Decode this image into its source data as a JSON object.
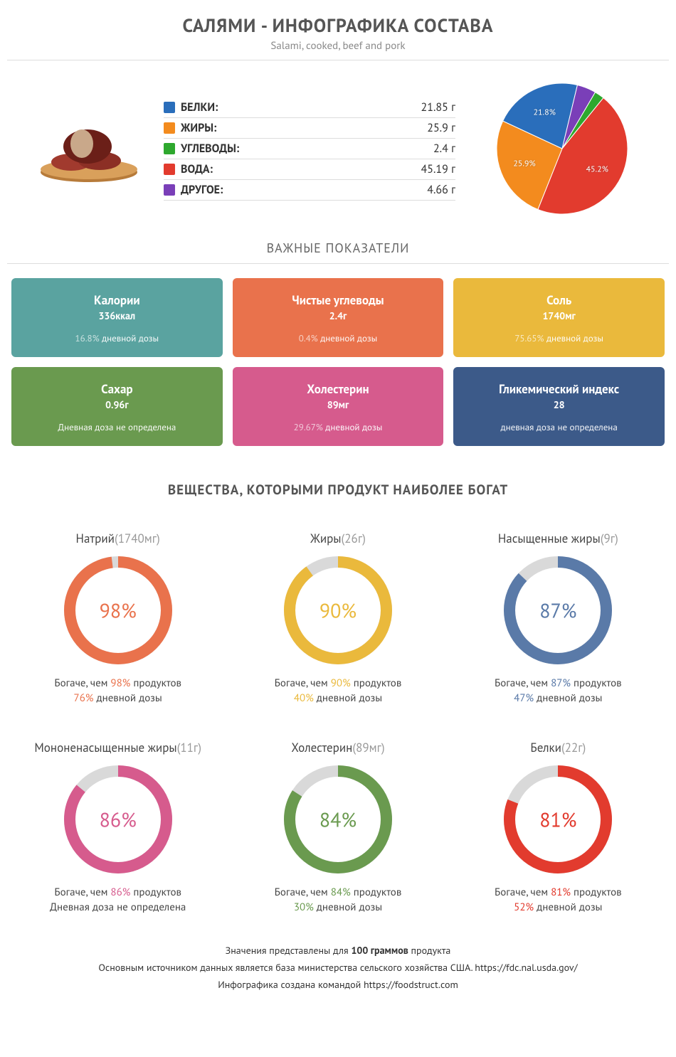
{
  "header": {
    "title": "САЛЯМИ - ИНФОГРАФИКА СОСТАВА",
    "subtitle": "Salami, cooked, beef and pork"
  },
  "composition": {
    "unit_suffix": " г",
    "items": [
      {
        "label": "БЕЛКИ:",
        "value": "21.85 г",
        "color": "#2a6ebb",
        "pct": 21.8
      },
      {
        "label": "ЖИРЫ:",
        "value": "25.9 г",
        "color": "#f38b1e",
        "pct": 25.9
      },
      {
        "label": "УГЛЕВОДЫ:",
        "value": "2.4 г",
        "color": "#2ea82e",
        "pct": 2.4
      },
      {
        "label": "ВОДА:",
        "value": "45.19 г",
        "color": "#e23b2e",
        "pct": 45.2
      },
      {
        "label": "ДРУГОЕ:",
        "value": "4.66 г",
        "color": "#7a3fb8",
        "pct": 4.7
      }
    ],
    "pie_labels": [
      {
        "text": "21.8%",
        "pct_cum": 10.9
      },
      {
        "text": "25.9%",
        "pct_cum": 34.75
      },
      {
        "text": "45.2%",
        "pct_cum": 73.7
      }
    ]
  },
  "indicators_title": "ВАЖНЫЕ ПОКАЗАТЕЛИ",
  "cards": [
    {
      "name": "Калории",
      "val": "336ккал",
      "dose_pct": "16.8%",
      "dose_txt": " дневной дозы",
      "color": "#5aa3a0"
    },
    {
      "name": "Чистые углеводы",
      "val": "2.4г",
      "dose_pct": "0.4%",
      "dose_txt": " дневной дозы",
      "color": "#e9724c"
    },
    {
      "name": "Соль",
      "val": "1740мг",
      "dose_pct": "75.65%",
      "dose_txt": " дневной дозы",
      "color": "#eab93c"
    },
    {
      "name": "Сахар",
      "val": "0.96г",
      "dose_pct": "",
      "dose_txt": "Дневная доза не определена",
      "color": "#6a9a4f"
    },
    {
      "name": "Холестерин",
      "val": "89мг",
      "dose_pct": "29.67%",
      "dose_txt": " дневной дозы",
      "color": "#d65b8d"
    },
    {
      "name": "Гликемический индекс",
      "val": "28",
      "dose_pct": "",
      "dose_txt": "дневная доза не определена",
      "color": "#3c5a89"
    }
  ],
  "rich_title": "ВЕЩЕСТВА, КОТОРЫМИ ПРОДУКТ НАИБОЛЕЕ БОГАТ",
  "rich_txt": {
    "prefix": "Богаче, чем ",
    "suffix": " продуктов",
    "dose_suffix": " дневной дозы",
    "dose_undef": "Дневная доза не определена"
  },
  "donuts": [
    {
      "name": "Натрий",
      "amt": "(1740мг)",
      "pct": 98,
      "dose": "76%",
      "color": "#e9724c"
    },
    {
      "name": "Жиры",
      "amt": "(26г)",
      "pct": 90,
      "dose": "40%",
      "color": "#eab93c"
    },
    {
      "name": "Насыщенные жиры",
      "amt": "(9г)",
      "pct": 87,
      "dose": "47%",
      "color": "#5a7aa8"
    },
    {
      "name": "Мононенасыщенные жиры",
      "amt": "(11г)",
      "pct": 86,
      "dose": null,
      "color": "#d65b8d"
    },
    {
      "name": "Холестерин",
      "amt": "(89мг)",
      "pct": 84,
      "dose": "30%",
      "color": "#6a9a4f"
    },
    {
      "name": "Белки",
      "amt": "(22г)",
      "pct": 81,
      "dose": "52%",
      "color": "#e23b2e"
    }
  ],
  "footer": {
    "l1a": "Значения представлены для ",
    "l1b": "100 граммов",
    "l1c": " продукта",
    "l2": "Основным источником данных является база министерства сельского хозяйства США. https://fdc.nal.usda.gov/",
    "l3": "Инфографика создана командой https://foodstruct.com"
  },
  "style": {
    "donut_track": "#d9d9d9",
    "donut_stroke_width": 16,
    "donut_radius": 68
  }
}
